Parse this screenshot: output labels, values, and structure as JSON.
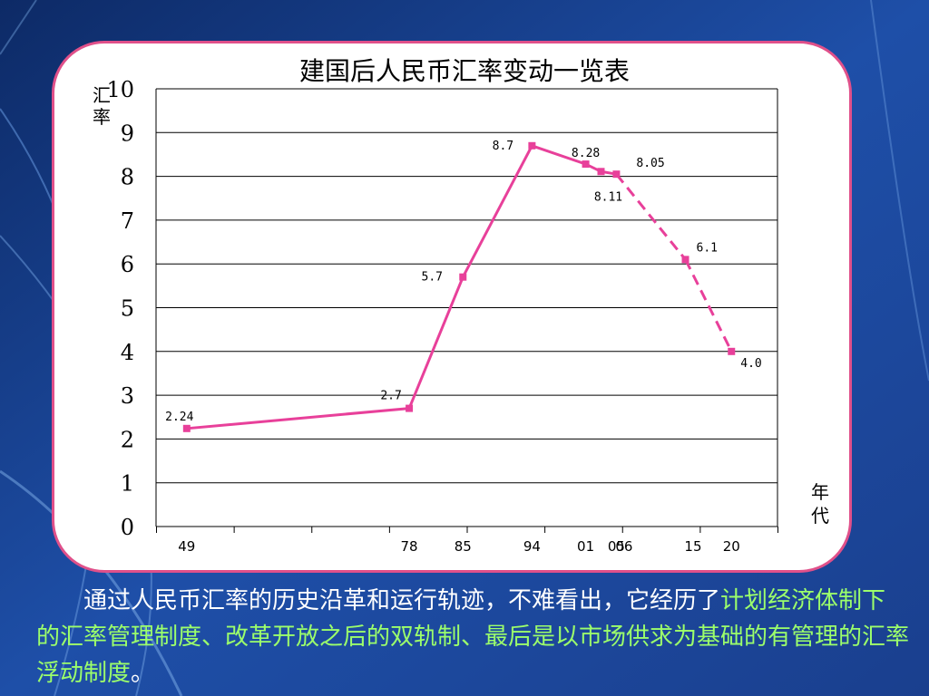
{
  "chart_data": {
    "type": "line",
    "title": "建国后人民币汇率变动一览表",
    "ylabel": "汇率",
    "xlabel": "年代",
    "ylim": [
      0,
      10
    ],
    "y_ticks": [
      "0",
      "1",
      "2",
      "3",
      "4",
      "5",
      "6",
      "7",
      "8",
      "9",
      "10"
    ],
    "x_tick_labels": [
      {
        "label": "49",
        "x": 49
      },
      {
        "label": "78",
        "x": 78
      },
      {
        "label": "85",
        "x": 85
      },
      {
        "label": "94",
        "x": 94
      },
      {
        "label": "01",
        "x": 101
      },
      {
        "label": "05",
        "x": 105
      },
      {
        "label": "06",
        "x": 106
      },
      {
        "label": "15",
        "x": 115
      },
      {
        "label": "20",
        "x": 120
      }
    ],
    "grid": true,
    "legend": "none",
    "color": "#e8409a",
    "points": [
      {
        "x": 49,
        "y": 2.24,
        "label": "2.24"
      },
      {
        "x": 78,
        "y": 2.7,
        "label": "2.7"
      },
      {
        "x": 85,
        "y": 5.7,
        "label": "5.7"
      },
      {
        "x": 94,
        "y": 8.7,
        "label": "8.7"
      },
      {
        "x": 101,
        "y": 8.28,
        "label": "8.28"
      },
      {
        "x": 103,
        "y": 8.11,
        "label": "8.11"
      },
      {
        "x": 105,
        "y": 8.05,
        "label": "8.05"
      },
      {
        "x": 114,
        "y": 6.1,
        "label": "6.1"
      },
      {
        "x": 120,
        "y": 4.0,
        "label": "4.0"
      }
    ],
    "dashed_from_x": 105
  },
  "caption": {
    "lead": "通过人民币汇率的历史沿革和运行轨迹，不难看出，它经历了",
    "highlight": "计划经济体制下的汇率管理制度、改革开放之后的双轨制、最后是以市场供求为基础的有管理的汇率浮动制度",
    "tail": "。"
  }
}
